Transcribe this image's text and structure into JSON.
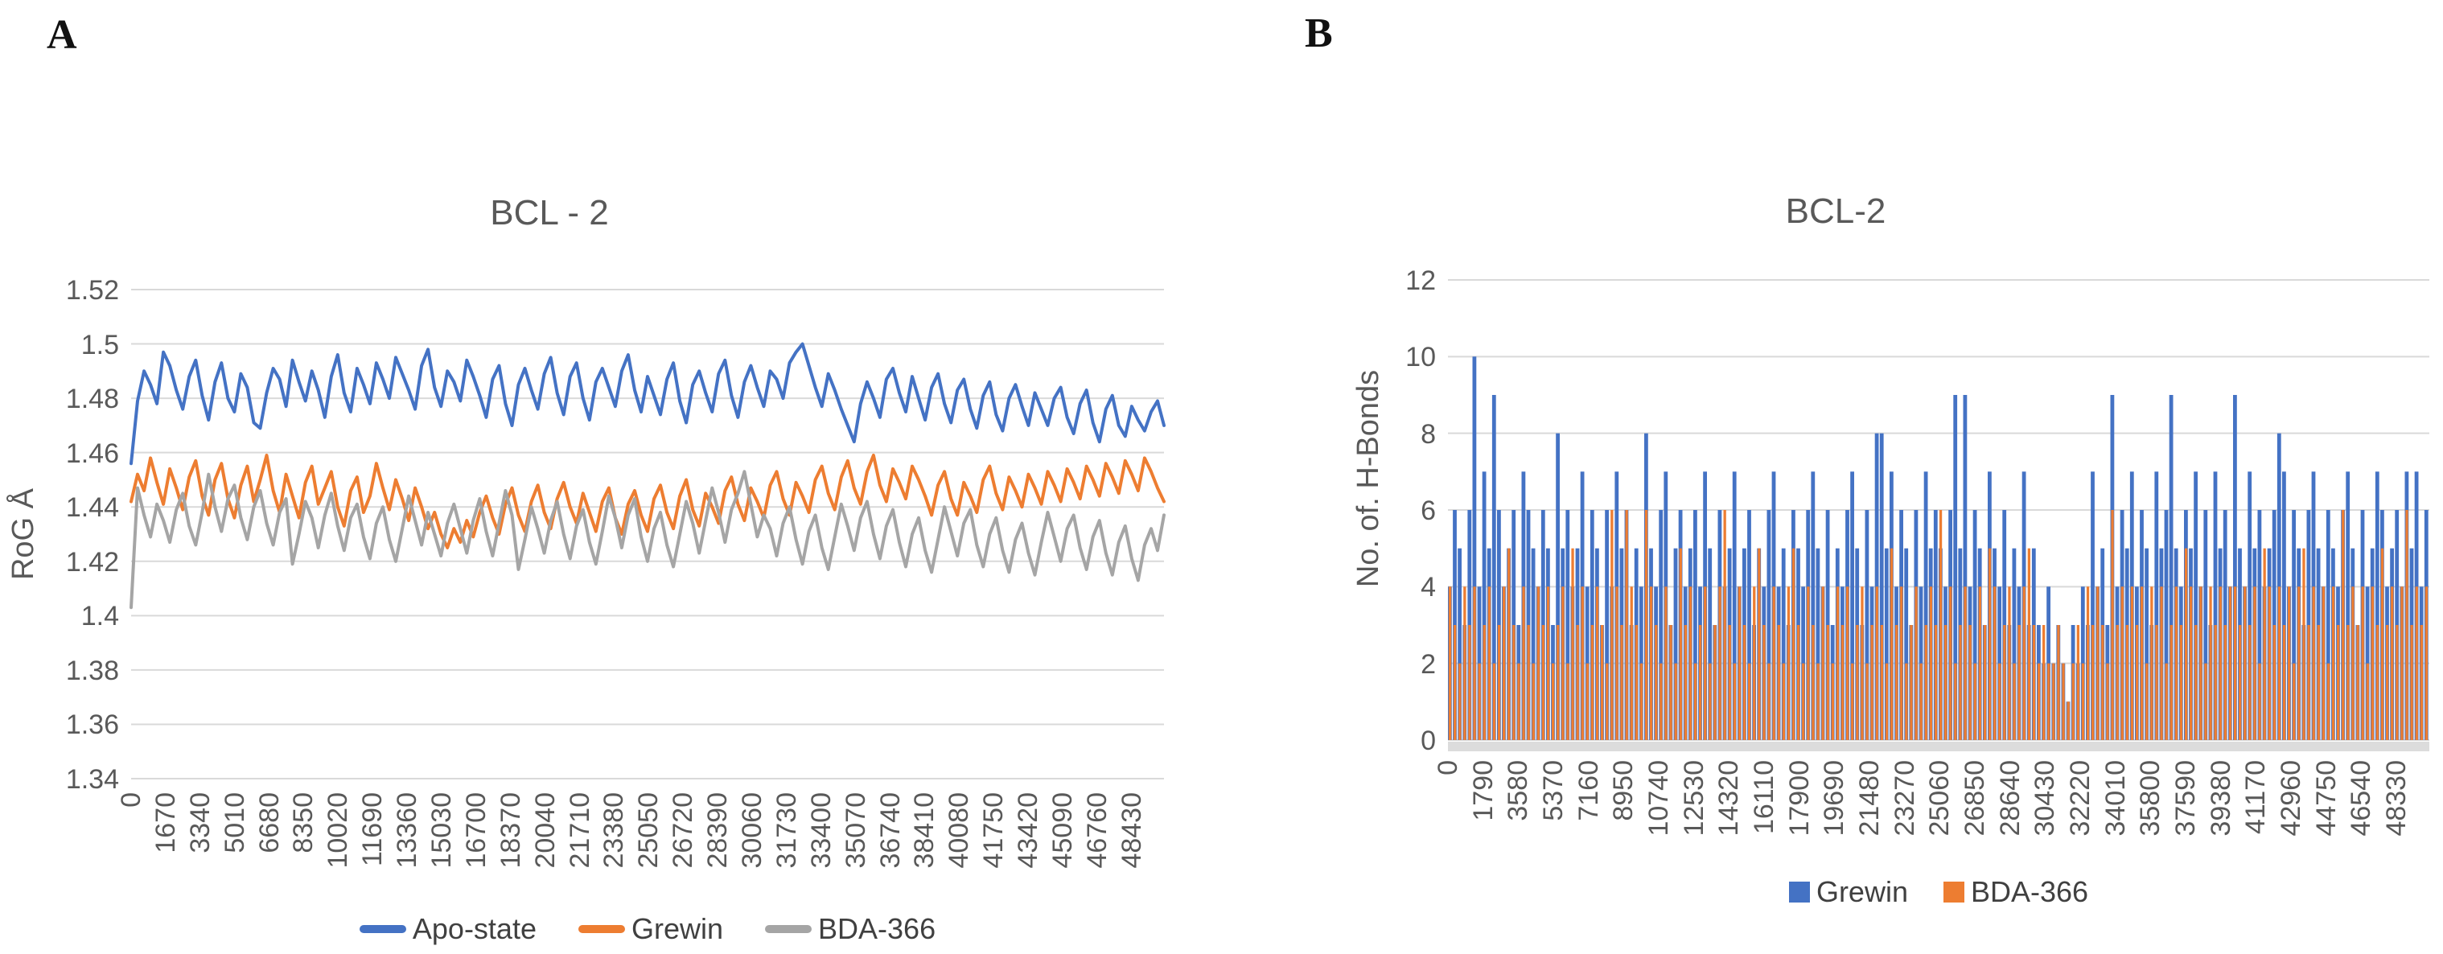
{
  "page": {
    "background": "#ffffff"
  },
  "panels": [
    {
      "letter": "A"
    },
    {
      "letter": "B"
    }
  ],
  "chart_data": [
    {
      "type": "line",
      "title": "BCL - 2",
      "ylabel": "RoG Å",
      "xlabel": "",
      "ylim": [
        1.34,
        1.52
      ],
      "grid": true,
      "legend_position": "bottom",
      "y_tick_labels": [
        "1.52",
        "1.5",
        "1.48",
        "1.46",
        "1.44",
        "1.42",
        "1.4",
        "1.38",
        "1.36",
        "1.34"
      ],
      "x_tick_labels": [
        "0",
        "1670",
        "3340",
        "5010",
        "6680",
        "8350",
        "10020",
        "11690",
        "13360",
        "15030",
        "16700",
        "18370",
        "20040",
        "21710",
        "23380",
        "25050",
        "26720",
        "28390",
        "30060",
        "31730",
        "33400",
        "35070",
        "36740",
        "38410",
        "40080",
        "41750",
        "43420",
        "45090",
        "46760",
        "48430"
      ],
      "x_range_frames": [
        0,
        50000
      ],
      "series": [
        {
          "name": "Apo-state",
          "color": "#4472C4",
          "values": [
            1.456,
            1.479,
            1.49,
            1.485,
            1.478,
            1.497,
            1.492,
            1.483,
            1.476,
            1.488,
            1.494,
            1.481,
            1.472,
            1.486,
            1.493,
            1.48,
            1.475,
            1.489,
            1.484,
            1.471,
            1.469,
            1.482,
            1.491,
            1.487,
            1.477,
            1.494,
            1.486,
            1.479,
            1.49,
            1.483,
            1.473,
            1.488,
            1.496,
            1.482,
            1.475,
            1.491,
            1.485,
            1.478,
            1.493,
            1.487,
            1.48,
            1.495,
            1.489,
            1.483,
            1.476,
            1.492,
            1.498,
            1.484,
            1.477,
            1.49,
            1.486,
            1.479,
            1.494,
            1.488,
            1.481,
            1.473,
            1.487,
            1.492,
            1.478,
            1.47,
            1.485,
            1.491,
            1.483,
            1.476,
            1.489,
            1.495,
            1.482,
            1.474,
            1.488,
            1.493,
            1.48,
            1.472,
            1.486,
            1.491,
            1.484,
            1.477,
            1.49,
            1.496,
            1.483,
            1.475,
            1.488,
            1.481,
            1.474,
            1.487,
            1.493,
            1.479,
            1.471,
            1.485,
            1.49,
            1.482,
            1.475,
            1.489,
            1.494,
            1.481,
            1.473,
            1.486,
            1.492,
            1.484,
            1.477,
            1.49,
            1.487,
            1.48,
            1.493,
            1.497,
            1.5,
            1.492,
            1.484,
            1.477,
            1.489,
            1.483,
            1.476,
            1.47,
            1.464,
            1.478,
            1.486,
            1.48,
            1.473,
            1.487,
            1.491,
            1.482,
            1.475,
            1.488,
            1.48,
            1.472,
            1.484,
            1.489,
            1.478,
            1.471,
            1.483,
            1.487,
            1.476,
            1.469,
            1.481,
            1.486,
            1.474,
            1.468,
            1.48,
            1.485,
            1.477,
            1.47,
            1.482,
            1.476,
            1.47,
            1.48,
            1.484,
            1.473,
            1.467,
            1.478,
            1.483,
            1.471,
            1.464,
            1.476,
            1.481,
            1.47,
            1.466,
            1.477,
            1.472,
            1.468,
            1.475,
            1.479,
            1.47
          ]
        },
        {
          "name": "Grewin",
          "color": "#ED7D31",
          "values": [
            1.442,
            1.452,
            1.446,
            1.458,
            1.449,
            1.441,
            1.454,
            1.447,
            1.439,
            1.451,
            1.457,
            1.444,
            1.437,
            1.45,
            1.456,
            1.443,
            1.436,
            1.448,
            1.455,
            1.442,
            1.45,
            1.459,
            1.446,
            1.438,
            1.452,
            1.444,
            1.436,
            1.449,
            1.455,
            1.441,
            1.447,
            1.453,
            1.44,
            1.433,
            1.446,
            1.451,
            1.438,
            1.444,
            1.456,
            1.447,
            1.439,
            1.45,
            1.443,
            1.435,
            1.447,
            1.44,
            1.432,
            1.438,
            1.43,
            1.425,
            1.432,
            1.427,
            1.435,
            1.429,
            1.438,
            1.444,
            1.436,
            1.43,
            1.441,
            1.447,
            1.437,
            1.431,
            1.442,
            1.448,
            1.438,
            1.432,
            1.443,
            1.449,
            1.44,
            1.434,
            1.445,
            1.438,
            1.431,
            1.442,
            1.447,
            1.436,
            1.43,
            1.441,
            1.446,
            1.437,
            1.431,
            1.443,
            1.448,
            1.438,
            1.432,
            1.444,
            1.45,
            1.439,
            1.433,
            1.445,
            1.44,
            1.434,
            1.446,
            1.451,
            1.441,
            1.435,
            1.447,
            1.442,
            1.436,
            1.448,
            1.453,
            1.443,
            1.437,
            1.449,
            1.444,
            1.438,
            1.45,
            1.455,
            1.445,
            1.439,
            1.451,
            1.457,
            1.447,
            1.441,
            1.453,
            1.459,
            1.448,
            1.442,
            1.454,
            1.449,
            1.443,
            1.455,
            1.45,
            1.444,
            1.437,
            1.448,
            1.453,
            1.443,
            1.437,
            1.449,
            1.444,
            1.438,
            1.45,
            1.455,
            1.445,
            1.439,
            1.451,
            1.446,
            1.44,
            1.452,
            1.447,
            1.441,
            1.453,
            1.448,
            1.442,
            1.454,
            1.449,
            1.443,
            1.455,
            1.45,
            1.444,
            1.456,
            1.451,
            1.445,
            1.457,
            1.452,
            1.446,
            1.458,
            1.453,
            1.447,
            1.442
          ]
        },
        {
          "name": "BDA-366",
          "color": "#A5A5A5",
          "values": [
            1.403,
            1.447,
            1.437,
            1.429,
            1.441,
            1.435,
            1.427,
            1.439,
            1.445,
            1.433,
            1.426,
            1.438,
            1.452,
            1.44,
            1.431,
            1.443,
            1.448,
            1.436,
            1.428,
            1.44,
            1.446,
            1.434,
            1.426,
            1.438,
            1.443,
            1.419,
            1.43,
            1.442,
            1.436,
            1.425,
            1.437,
            1.445,
            1.433,
            1.424,
            1.436,
            1.441,
            1.429,
            1.421,
            1.434,
            1.44,
            1.428,
            1.42,
            1.432,
            1.444,
            1.435,
            1.426,
            1.438,
            1.43,
            1.422,
            1.434,
            1.441,
            1.432,
            1.423,
            1.435,
            1.443,
            1.431,
            1.422,
            1.434,
            1.446,
            1.437,
            1.417,
            1.428,
            1.44,
            1.432,
            1.423,
            1.435,
            1.442,
            1.43,
            1.421,
            1.433,
            1.439,
            1.427,
            1.419,
            1.431,
            1.444,
            1.436,
            1.425,
            1.437,
            1.443,
            1.429,
            1.42,
            1.432,
            1.438,
            1.426,
            1.418,
            1.43,
            1.442,
            1.434,
            1.423,
            1.435,
            1.447,
            1.438,
            1.427,
            1.439,
            1.445,
            1.453,
            1.441,
            1.429,
            1.437,
            1.432,
            1.422,
            1.434,
            1.44,
            1.428,
            1.419,
            1.431,
            1.437,
            1.425,
            1.417,
            1.429,
            1.441,
            1.433,
            1.424,
            1.436,
            1.442,
            1.43,
            1.421,
            1.433,
            1.439,
            1.427,
            1.418,
            1.43,
            1.436,
            1.424,
            1.416,
            1.428,
            1.44,
            1.431,
            1.422,
            1.434,
            1.439,
            1.426,
            1.418,
            1.43,
            1.436,
            1.424,
            1.416,
            1.428,
            1.434,
            1.423,
            1.415,
            1.427,
            1.438,
            1.429,
            1.42,
            1.432,
            1.437,
            1.425,
            1.417,
            1.429,
            1.435,
            1.423,
            1.415,
            1.427,
            1.433,
            1.421,
            1.413,
            1.426,
            1.432,
            1.424,
            1.437
          ]
        }
      ]
    },
    {
      "type": "bar",
      "title": "BCL-2",
      "ylabel": "No. of. H-Bonds",
      "xlabel": "",
      "ylim": [
        0,
        12
      ],
      "grid": true,
      "legend_position": "bottom",
      "y_tick_labels": [
        "12",
        "10",
        "8",
        "6",
        "4",
        "2",
        "0"
      ],
      "x_tick_labels": [
        "0",
        "1790",
        "3580",
        "5370",
        "7160",
        "8950",
        "10740",
        "12530",
        "14320",
        "16110",
        "17900",
        "19690",
        "21480",
        "23270",
        "25060",
        "26850",
        "28640",
        "30430",
        "32220",
        "34010",
        "35800",
        "37590",
        "39380",
        "41170",
        "42960",
        "44750",
        "46540",
        "48330"
      ],
      "x_range_frames": [
        0,
        50000
      ],
      "series": [
        {
          "name": "Grewin",
          "color": "#4472C4",
          "values": [
            4,
            6,
            5,
            3,
            6,
            10,
            4,
            7,
            5,
            9,
            6,
            4,
            5,
            6,
            3,
            7,
            6,
            5,
            4,
            6,
            5,
            3,
            8,
            5,
            6,
            4,
            5,
            7,
            4,
            6,
            5,
            3,
            6,
            4,
            7,
            5,
            6,
            3,
            5,
            4,
            8,
            5,
            4,
            6,
            7,
            3,
            5,
            6,
            4,
            5,
            6,
            4,
            7,
            5,
            3,
            6,
            4,
            5,
            7,
            4,
            5,
            6,
            3,
            5,
            4,
            6,
            7,
            4,
            5,
            3,
            6,
            5,
            4,
            6,
            7,
            5,
            4,
            6,
            3,
            5,
            4,
            6,
            7,
            5,
            3,
            6,
            4,
            8,
            8,
            5,
            7,
            4,
            6,
            5,
            3,
            6,
            4,
            7,
            5,
            6,
            5,
            4,
            6,
            9,
            5,
            9,
            4,
            6,
            5,
            3,
            7,
            5,
            4,
            6,
            3,
            5,
            4,
            7,
            3,
            5,
            3,
            2,
            4,
            2,
            3,
            2,
            1,
            3,
            2,
            4,
            3,
            7,
            4,
            5,
            3,
            9,
            4,
            6,
            5,
            7,
            4,
            6,
            5,
            3,
            7,
            5,
            6,
            9,
            5,
            4,
            6,
            5,
            7,
            4,
            6,
            3,
            7,
            5,
            6,
            4,
            9,
            5,
            4,
            7,
            5,
            6,
            4,
            5,
            6,
            8,
            7,
            4,
            6,
            5,
            3,
            6,
            7,
            5,
            4,
            6,
            5,
            4,
            6,
            7,
            5,
            3,
            6,
            4,
            5,
            7,
            6,
            4,
            5,
            6,
            4,
            7,
            5,
            7,
            4,
            6
          ]
        },
        {
          "name": "BDA-366",
          "color": "#ED7D31",
          "values": [
            4,
            3,
            2,
            4,
            3,
            4,
            2,
            3,
            4,
            2,
            3,
            4,
            5,
            3,
            2,
            4,
            3,
            2,
            4,
            3,
            4,
            2,
            3,
            4,
            2,
            5,
            3,
            4,
            2,
            3,
            4,
            3,
            2,
            6,
            4,
            3,
            6,
            4,
            3,
            2,
            6,
            4,
            3,
            2,
            4,
            3,
            2,
            5,
            3,
            4,
            2,
            3,
            4,
            2,
            3,
            4,
            6,
            3,
            2,
            4,
            3,
            2,
            4,
            5,
            3,
            2,
            4,
            3,
            2,
            4,
            5,
            3,
            2,
            4,
            3,
            2,
            4,
            3,
            2,
            4,
            3,
            4,
            2,
            3,
            4,
            2,
            3,
            4,
            3,
            2,
            5,
            3,
            4,
            2,
            3,
            4,
            2,
            3,
            4,
            3,
            6,
            3,
            4,
            2,
            3,
            4,
            3,
            2,
            4,
            3,
            5,
            4,
            2,
            3,
            4,
            2,
            3,
            4,
            5,
            3,
            2,
            3,
            2,
            2,
            3,
            2,
            1,
            2,
            3,
            2,
            4,
            3,
            4,
            3,
            2,
            6,
            3,
            4,
            3,
            4,
            3,
            4,
            2,
            4,
            3,
            4,
            2,
            3,
            4,
            3,
            5,
            4,
            3,
            4,
            2,
            4,
            3,
            4,
            3,
            4,
            4,
            3,
            4,
            3,
            4,
            2,
            5,
            4,
            3,
            4,
            3,
            4,
            2,
            4,
            5,
            3,
            4,
            3,
            4,
            2,
            4,
            3,
            6,
            3,
            4,
            3,
            4,
            2,
            4,
            3,
            5,
            3,
            4,
            3,
            4,
            6,
            3,
            4,
            3,
            4
          ]
        }
      ]
    }
  ]
}
